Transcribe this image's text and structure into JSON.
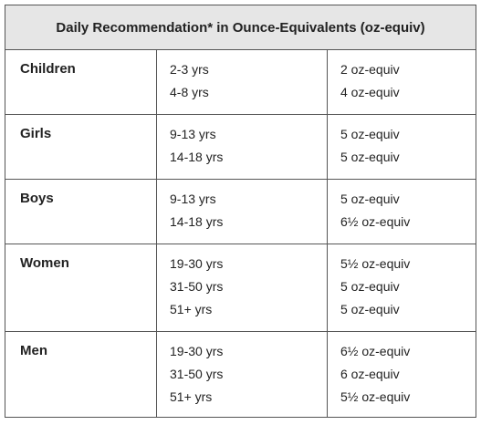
{
  "table": {
    "title": "Daily Recommendation* in Ounce-Equivalents (oz-equiv)",
    "rows": [
      {
        "group": "Children",
        "ages": [
          "2-3 yrs",
          "4-8 yrs"
        ],
        "amounts": [
          "2 oz-equiv",
          "4 oz-equiv"
        ]
      },
      {
        "group": "Girls",
        "ages": [
          "9-13 yrs",
          "14-18 yrs"
        ],
        "amounts": [
          "5 oz-equiv",
          "5 oz-equiv"
        ]
      },
      {
        "group": "Boys",
        "ages": [
          "9-13 yrs",
          "14-18 yrs"
        ],
        "amounts": [
          "5 oz-equiv",
          "6½ oz-equiv"
        ]
      },
      {
        "group": "Women",
        "ages": [
          "19-30 yrs",
          "31-50 yrs",
          "51+ yrs"
        ],
        "amounts": [
          "5½ oz-equiv",
          "5 oz-equiv",
          "5 oz-equiv"
        ]
      },
      {
        "group": "Men",
        "ages": [
          "19-30 yrs",
          "31-50 yrs",
          "51+ yrs"
        ],
        "amounts": [
          "6½ oz-equiv",
          "6 oz-equiv",
          "5½ oz-equiv"
        ]
      }
    ]
  }
}
